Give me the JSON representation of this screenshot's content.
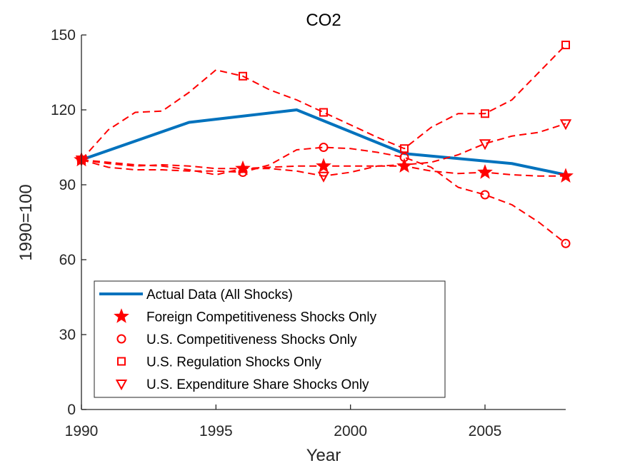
{
  "chart_data": {
    "type": "line",
    "title": "CO2",
    "xlabel": "Year",
    "ylabel": "1990=100",
    "xlim": [
      1990,
      2008
    ],
    "ylim": [
      0,
      150
    ],
    "xticks": [
      1990,
      1995,
      2000,
      2005
    ],
    "yticks": [
      0,
      30,
      60,
      90,
      120,
      150
    ],
    "grid": false,
    "legend_position": "bottom-left",
    "colors": {
      "actual": "#0072BD",
      "shocks": "#FF0000",
      "axis": "#262626"
    },
    "series": [
      {
        "name": "Actual Data (All Shocks)",
        "style": "solid",
        "marker": "none",
        "points": [
          [
            1990,
            100
          ],
          [
            1994,
            115
          ],
          [
            1998,
            120
          ],
          [
            2002,
            102.5
          ],
          [
            2006,
            98.5
          ],
          [
            2008,
            94
          ]
        ]
      },
      {
        "name": "Foreign Competitiveness Shocks Only",
        "style": "dashed",
        "marker": "star",
        "points": [
          [
            1990,
            100
          ],
          [
            1991,
            98.5
          ],
          [
            1992,
            97.5
          ],
          [
            1993,
            98
          ],
          [
            1994,
            97.5
          ],
          [
            1995,
            96.5
          ],
          [
            1996,
            96.5
          ],
          [
            1997,
            97
          ],
          [
            1998,
            97.5
          ],
          [
            1999,
            97.5
          ],
          [
            2000,
            97.5
          ],
          [
            2001,
            97.5
          ],
          [
            2002,
            97.5
          ],
          [
            2003,
            95.5
          ],
          [
            2004,
            94.5
          ],
          [
            2005,
            95
          ],
          [
            2006,
            94
          ],
          [
            2007,
            93.5
          ],
          [
            2008,
            93.5
          ]
        ],
        "marker_x": [
          1990,
          1996,
          1999,
          2002,
          2005,
          2008
        ]
      },
      {
        "name": "U.S. Competitiveness Shocks Only",
        "style": "dashed",
        "marker": "circle",
        "points": [
          [
            1990,
            100
          ],
          [
            1991,
            97
          ],
          [
            1992,
            96
          ],
          [
            1993,
            96
          ],
          [
            1994,
            95.5
          ],
          [
            1995,
            95.5
          ],
          [
            1996,
            95
          ],
          [
            1997,
            98
          ],
          [
            1998,
            104
          ],
          [
            1999,
            105
          ],
          [
            2000,
            104.5
          ],
          [
            2001,
            103
          ],
          [
            2002,
            101
          ],
          [
            2003,
            97
          ],
          [
            2004,
            89
          ],
          [
            2005,
            86
          ],
          [
            2006,
            82
          ],
          [
            2007,
            75
          ],
          [
            2008,
            66.5
          ]
        ],
        "marker_x": [
          1990,
          1996,
          1999,
          2002,
          2005,
          2008
        ]
      },
      {
        "name": "U.S. Regulation Shocks Only",
        "style": "dashed",
        "marker": "square",
        "points": [
          [
            1990,
            100
          ],
          [
            1991,
            112
          ],
          [
            1992,
            119
          ],
          [
            1993,
            119.5
          ],
          [
            1994,
            127
          ],
          [
            1995,
            136
          ],
          [
            1996,
            133.5
          ],
          [
            1997,
            128
          ],
          [
            1998,
            124
          ],
          [
            1999,
            119
          ],
          [
            2000,
            114
          ],
          [
            2001,
            109
          ],
          [
            2002,
            104.5
          ],
          [
            2003,
            113
          ],
          [
            2004,
            118.5
          ],
          [
            2005,
            118.5
          ],
          [
            2006,
            124
          ],
          [
            2007,
            135
          ],
          [
            2008,
            146
          ]
        ],
        "marker_x": [
          1990,
          1996,
          1999,
          2002,
          2005,
          2008
        ]
      },
      {
        "name": "U.S. Expenditure Share Shocks Only",
        "style": "dashed",
        "marker": "triangle-down",
        "points": [
          [
            1990,
            100
          ],
          [
            1991,
            99
          ],
          [
            1992,
            98
          ],
          [
            1993,
            97.5
          ],
          [
            1994,
            96
          ],
          [
            1995,
            94
          ],
          [
            1996,
            96.5
          ],
          [
            1997,
            96.5
          ],
          [
            1998,
            95.5
          ],
          [
            1999,
            93.5
          ],
          [
            2000,
            95
          ],
          [
            2001,
            97.5
          ],
          [
            2002,
            98
          ],
          [
            2003,
            99
          ],
          [
            2004,
            102
          ],
          [
            2005,
            106.5
          ],
          [
            2006,
            109.5
          ],
          [
            2007,
            111
          ],
          [
            2008,
            114.5
          ]
        ],
        "marker_x": [
          1990,
          1999,
          2005,
          2008
        ]
      }
    ]
  }
}
